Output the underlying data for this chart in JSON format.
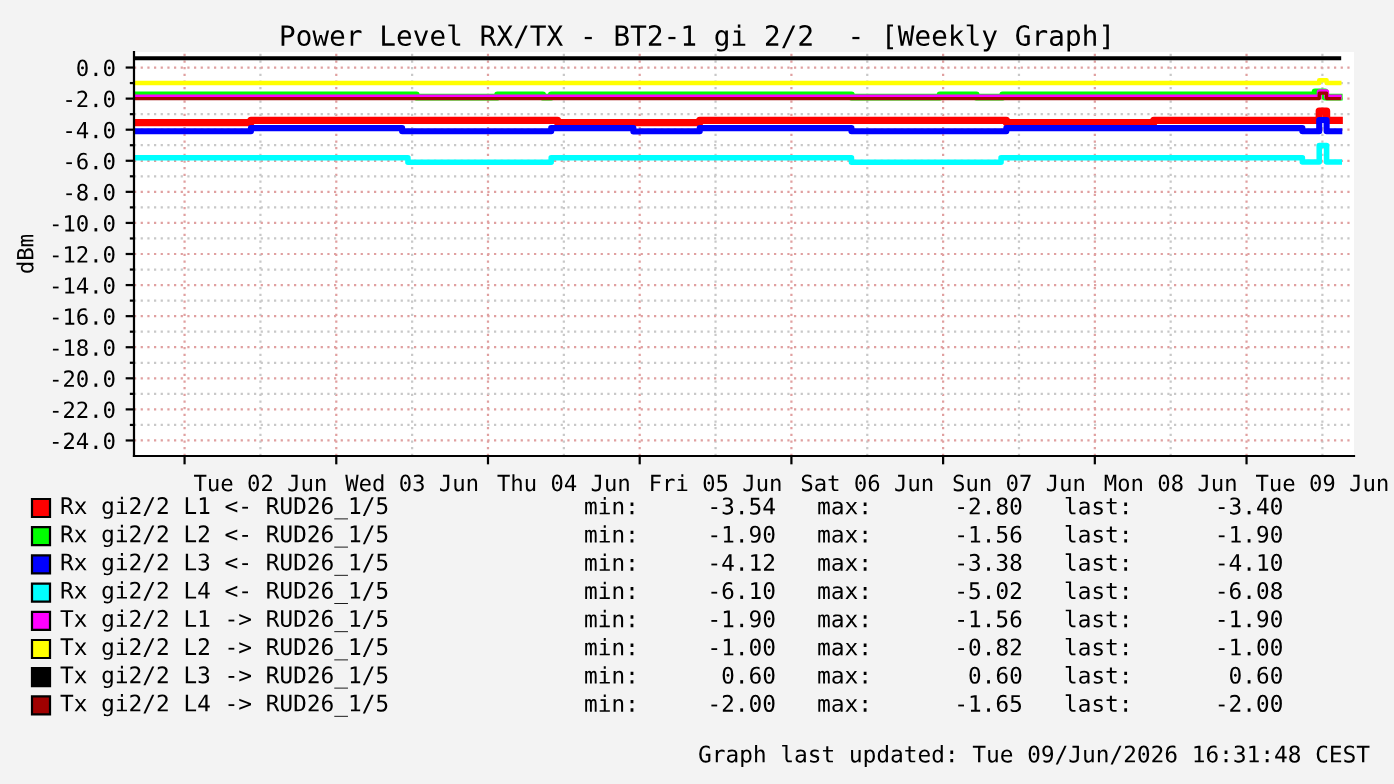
{
  "chart_data": {
    "type": "step",
    "title": "Power Level RX/TX - BT2-1 gi 2/2  - [Weekly Graph]",
    "ylabel": "dBm",
    "xlim": [
      "2026-06-01T16:00",
      "2026-06-09T17:00"
    ],
    "xticks": [
      {
        "value": "2026-06-02T00:00",
        "label": null
      },
      {
        "value": "2026-06-02T12:00",
        "label": "Tue 02 Jun"
      },
      {
        "value": "2026-06-03T00:00",
        "label": null
      },
      {
        "value": "2026-06-03T12:00",
        "label": "Wed 03 Jun"
      },
      {
        "value": "2026-06-04T00:00",
        "label": null
      },
      {
        "value": "2026-06-04T12:00",
        "label": "Thu 04 Jun"
      },
      {
        "value": "2026-06-05T00:00",
        "label": null
      },
      {
        "value": "2026-06-05T12:00",
        "label": "Fri 05 Jun"
      },
      {
        "value": "2026-06-06T00:00",
        "label": null
      },
      {
        "value": "2026-06-06T12:00",
        "label": "Sat 06 Jun"
      },
      {
        "value": "2026-06-07T00:00",
        "label": null
      },
      {
        "value": "2026-06-07T12:00",
        "label": "Sun 07 Jun"
      },
      {
        "value": "2026-06-08T00:00",
        "label": null
      },
      {
        "value": "2026-06-08T12:00",
        "label": "Mon 08 Jun"
      },
      {
        "value": "2026-06-09T00:00",
        "label": null
      },
      {
        "value": "2026-06-09T12:00",
        "label": "Tue 09 Jun"
      }
    ],
    "ylim": [
      -25,
      1.0
    ],
    "yticks": [
      {
        "value": 0,
        "label": "0.0"
      },
      {
        "value": -1,
        "label": null
      },
      {
        "value": -2,
        "label": "-2.0"
      },
      {
        "value": -3,
        "label": null
      },
      {
        "value": -4,
        "label": "-4.0"
      },
      {
        "value": -5,
        "label": null
      },
      {
        "value": -6,
        "label": "-6.0"
      },
      {
        "value": -7,
        "label": null
      },
      {
        "value": -8,
        "label": "-8.0"
      },
      {
        "value": -9,
        "label": null
      },
      {
        "value": -10,
        "label": "-10.0"
      },
      {
        "value": -11,
        "label": null
      },
      {
        "value": -12,
        "label": "-12.0"
      },
      {
        "value": -13,
        "label": null
      },
      {
        "value": -14,
        "label": "-14.0"
      },
      {
        "value": -15,
        "label": null
      },
      {
        "value": -16,
        "label": "-16.0"
      },
      {
        "value": -17,
        "label": null
      },
      {
        "value": -18,
        "label": "-18.0"
      },
      {
        "value": -19,
        "label": null
      },
      {
        "value": -20,
        "label": "-20.0"
      },
      {
        "value": -21,
        "label": null
      },
      {
        "value": -22,
        "label": "-22.0"
      },
      {
        "value": -23,
        "label": null
      },
      {
        "value": -24,
        "label": "-24.0"
      }
    ],
    "grid": true,
    "legend": "bottom",
    "series": [
      {
        "name": "Rx gi2/2 L1 <- RUD26_1/5",
        "color": "#ff0000",
        "x": [
          "2026-06-01T16:00",
          "2026-06-02T10:30",
          "2026-06-04T11:00",
          "2026-06-05T09:30",
          "2026-06-07T10:00",
          "2026-06-08T09:20",
          "2026-06-09T11:30",
          "2026-06-09T12:40",
          "2026-06-09T14:40"
        ],
        "values": [
          -3.54,
          -3.4,
          -3.54,
          -3.4,
          -3.54,
          -3.4,
          -2.8,
          -3.4,
          -3.4
        ]
      },
      {
        "name": "Rx gi2/2 L2 <- RUD26_1/5",
        "color": "#00ff00",
        "x": [
          "2026-06-01T16:00",
          "2026-06-03T12:40",
          "2026-06-04T01:30",
          "2026-06-04T08:40",
          "2026-06-04T10:00",
          "2026-06-06T09:30",
          "2026-06-06T23:30",
          "2026-06-07T05:15",
          "2026-06-07T09:25",
          "2026-06-09T10:50",
          "2026-06-09T12:25",
          "2026-06-09T14:40"
        ],
        "values": [
          -1.75,
          -1.9,
          -1.75,
          -1.9,
          -1.75,
          -1.9,
          -1.75,
          -1.9,
          -1.75,
          -1.56,
          -1.9,
          -1.9
        ]
      },
      {
        "name": "Rx gi2/2 L3 <- RUD26_1/5",
        "color": "#0000ff",
        "x": [
          "2026-06-01T16:00",
          "2026-06-02T10:30",
          "2026-06-03T10:25",
          "2026-06-04T10:00",
          "2026-06-04T23:00",
          "2026-06-05T00:00",
          "2026-06-05T09:30",
          "2026-06-06T09:30",
          "2026-06-07T10:00",
          "2026-06-09T08:50",
          "2026-06-09T11:30",
          "2026-06-09T12:40",
          "2026-06-09T14:40"
        ],
        "values": [
          -4.1,
          -3.9,
          -4.1,
          -3.9,
          -4.12,
          -4.1,
          -3.9,
          -4.1,
          -3.9,
          -4.1,
          -3.38,
          -4.1,
          -4.1
        ]
      },
      {
        "name": "Rx gi2/2 L4 <- RUD26_1/5",
        "color": "#00ffff",
        "x": [
          "2026-06-01T16:00",
          "2026-06-03T11:20",
          "2026-06-04T10:00",
          "2026-06-06T09:30",
          "2026-06-07T09:10",
          "2026-06-09T08:50",
          "2026-06-09T11:30",
          "2026-06-09T12:40",
          "2026-06-09T14:40"
        ],
        "values": [
          -5.8,
          -6.1,
          -5.8,
          -6.1,
          -5.8,
          -6.08,
          -5.02,
          -6.08,
          -6.08
        ]
      },
      {
        "name": "Tx gi2/2 L1 -> RUD26_1/5",
        "color": "#ff00ff",
        "x": [
          "2026-06-01T16:00",
          "2026-06-09T11:30",
          "2026-06-09T12:40",
          "2026-06-09T14:40"
        ],
        "values": [
          -1.9,
          -1.56,
          -1.9,
          -1.9
        ]
      },
      {
        "name": "Tx gi2/2 L2 -> RUD26_1/5",
        "color": "#ffff00",
        "x": [
          "2026-06-01T16:00",
          "2026-06-09T11:30",
          "2026-06-09T12:40",
          "2026-06-09T14:40"
        ],
        "values": [
          -1.0,
          -0.82,
          -1.0,
          -1.0
        ]
      },
      {
        "name": "Tx gi2/2 L3 -> RUD26_1/5",
        "color": "#000000",
        "x": [
          "2026-06-01T16:00",
          "2026-06-09T14:40"
        ],
        "values": [
          0.6,
          0.6
        ]
      },
      {
        "name": "Tx gi2/2 L4 -> RUD26_1/5",
        "color": "#a00000",
        "x": [
          "2026-06-01T16:00",
          "2026-06-09T11:30",
          "2026-06-09T12:40",
          "2026-06-09T14:40"
        ],
        "values": [
          -2.0,
          -1.65,
          -2.0,
          -2.0
        ]
      }
    ],
    "annotations": [
      "min:     -3.54   max:      -2.80   last:      -3.40",
      "min:     -1.90   max:      -1.56   last:      -1.90",
      "min:     -4.12   max:      -3.38   last:      -4.10",
      "min:     -6.10   max:      -5.02   last:      -6.08",
      "min:     -1.90   max:      -1.56   last:      -1.90",
      "min:     -1.00   max:      -0.82   last:      -1.00",
      "min:      0.60   max:       0.60   last:       0.60",
      "min:     -2.00   max:      -1.65   last:      -2.00",
      "Graph last updated: Tue 09/Jun/2026 16:31:48 CEST"
    ]
  }
}
